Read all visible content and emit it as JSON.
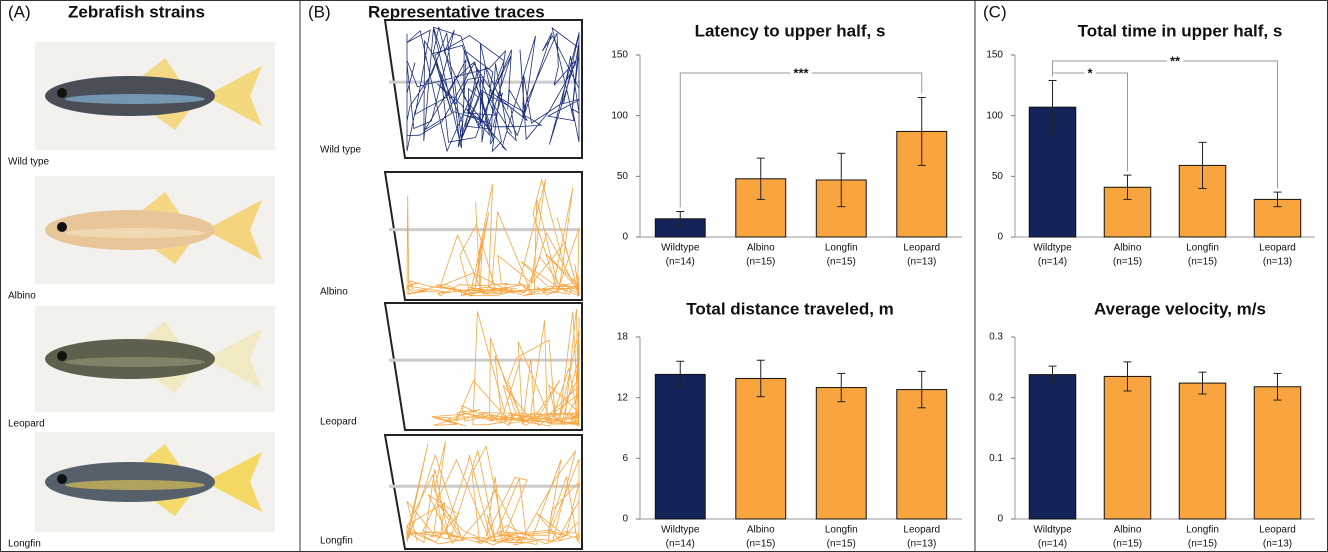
{
  "panel_labels": {
    "a": "(A)",
    "b": "(B)",
    "c": "(C)"
  },
  "panel_a": {
    "title": "Zebrafish strains",
    "strains": [
      "Wild type",
      "Albino",
      "Leopard",
      "Longfin"
    ]
  },
  "panel_b": {
    "title": "Representative traces",
    "traces": [
      "Wild type",
      "Albino",
      "Leopard",
      "Longfin"
    ]
  },
  "chart_data": [
    {
      "type": "bar",
      "title": "Latency to upper half, s",
      "categories": [
        "Wildtype",
        "Albino",
        "Longfin",
        "Leopard"
      ],
      "sample_sizes": [
        "(n=14)",
        "(n=15)",
        "(n=15)",
        "(n=13)"
      ],
      "values": [
        15,
        48,
        47,
        87
      ],
      "errors": [
        6,
        17,
        22,
        28
      ],
      "colors": [
        "#14245a",
        "#f9a53f",
        "#f9a53f",
        "#f9a53f"
      ],
      "ylim": [
        0,
        150
      ],
      "yticks": [
        0,
        50,
        100,
        150
      ],
      "annotations": [
        {
          "label": "***",
          "between": [
            "Wildtype",
            "Leopard"
          ]
        }
      ]
    },
    {
      "type": "bar",
      "title": "Total time in upper half, s",
      "categories": [
        "Wildtype",
        "Albino",
        "Longfin",
        "Leopard"
      ],
      "sample_sizes": [
        "(n=14)",
        "(n=15)",
        "(n=15)",
        "(n=13)"
      ],
      "values": [
        107,
        41,
        59,
        31
      ],
      "errors": [
        22,
        10,
        19,
        6
      ],
      "colors": [
        "#14245a",
        "#f9a53f",
        "#f9a53f",
        "#f9a53f"
      ],
      "ylim": [
        0,
        150
      ],
      "yticks": [
        0,
        50,
        100,
        150
      ],
      "annotations": [
        {
          "label": "*",
          "between": [
            "Wildtype",
            "Albino"
          ]
        },
        {
          "label": "**",
          "between": [
            "Wildtype",
            "Leopard"
          ]
        }
      ]
    },
    {
      "type": "bar",
      "title": "Total distance traveled, m",
      "categories": [
        "Wildtype",
        "Albino",
        "Longfin",
        "Leopard"
      ],
      "sample_sizes": [
        "(n=14)",
        "(n=15)",
        "(n=15)",
        "(n=13)"
      ],
      "values": [
        14.3,
        13.9,
        13.0,
        12.8
      ],
      "errors": [
        1.3,
        1.8,
        1.4,
        1.8
      ],
      "colors": [
        "#14245a",
        "#f9a53f",
        "#f9a53f",
        "#f9a53f"
      ],
      "ylim": [
        0,
        18
      ],
      "yticks": [
        0,
        6,
        12,
        18
      ],
      "annotations": []
    },
    {
      "type": "bar",
      "title": "Average velocity, m/s",
      "categories": [
        "Wildtype",
        "Albino",
        "Longfin",
        "Leopard"
      ],
      "sample_sizes": [
        "(n=14)",
        "(n=15)",
        "(n=15)",
        "(n=13)"
      ],
      "values": [
        0.238,
        0.235,
        0.224,
        0.218
      ],
      "errors": [
        0.014,
        0.024,
        0.018,
        0.022
      ],
      "colors": [
        "#14245a",
        "#f9a53f",
        "#f9a53f",
        "#f9a53f"
      ],
      "ylim": [
        0,
        0.3
      ],
      "yticks": [
        0,
        0.1,
        0.2,
        0.3
      ],
      "annotations": []
    }
  ]
}
